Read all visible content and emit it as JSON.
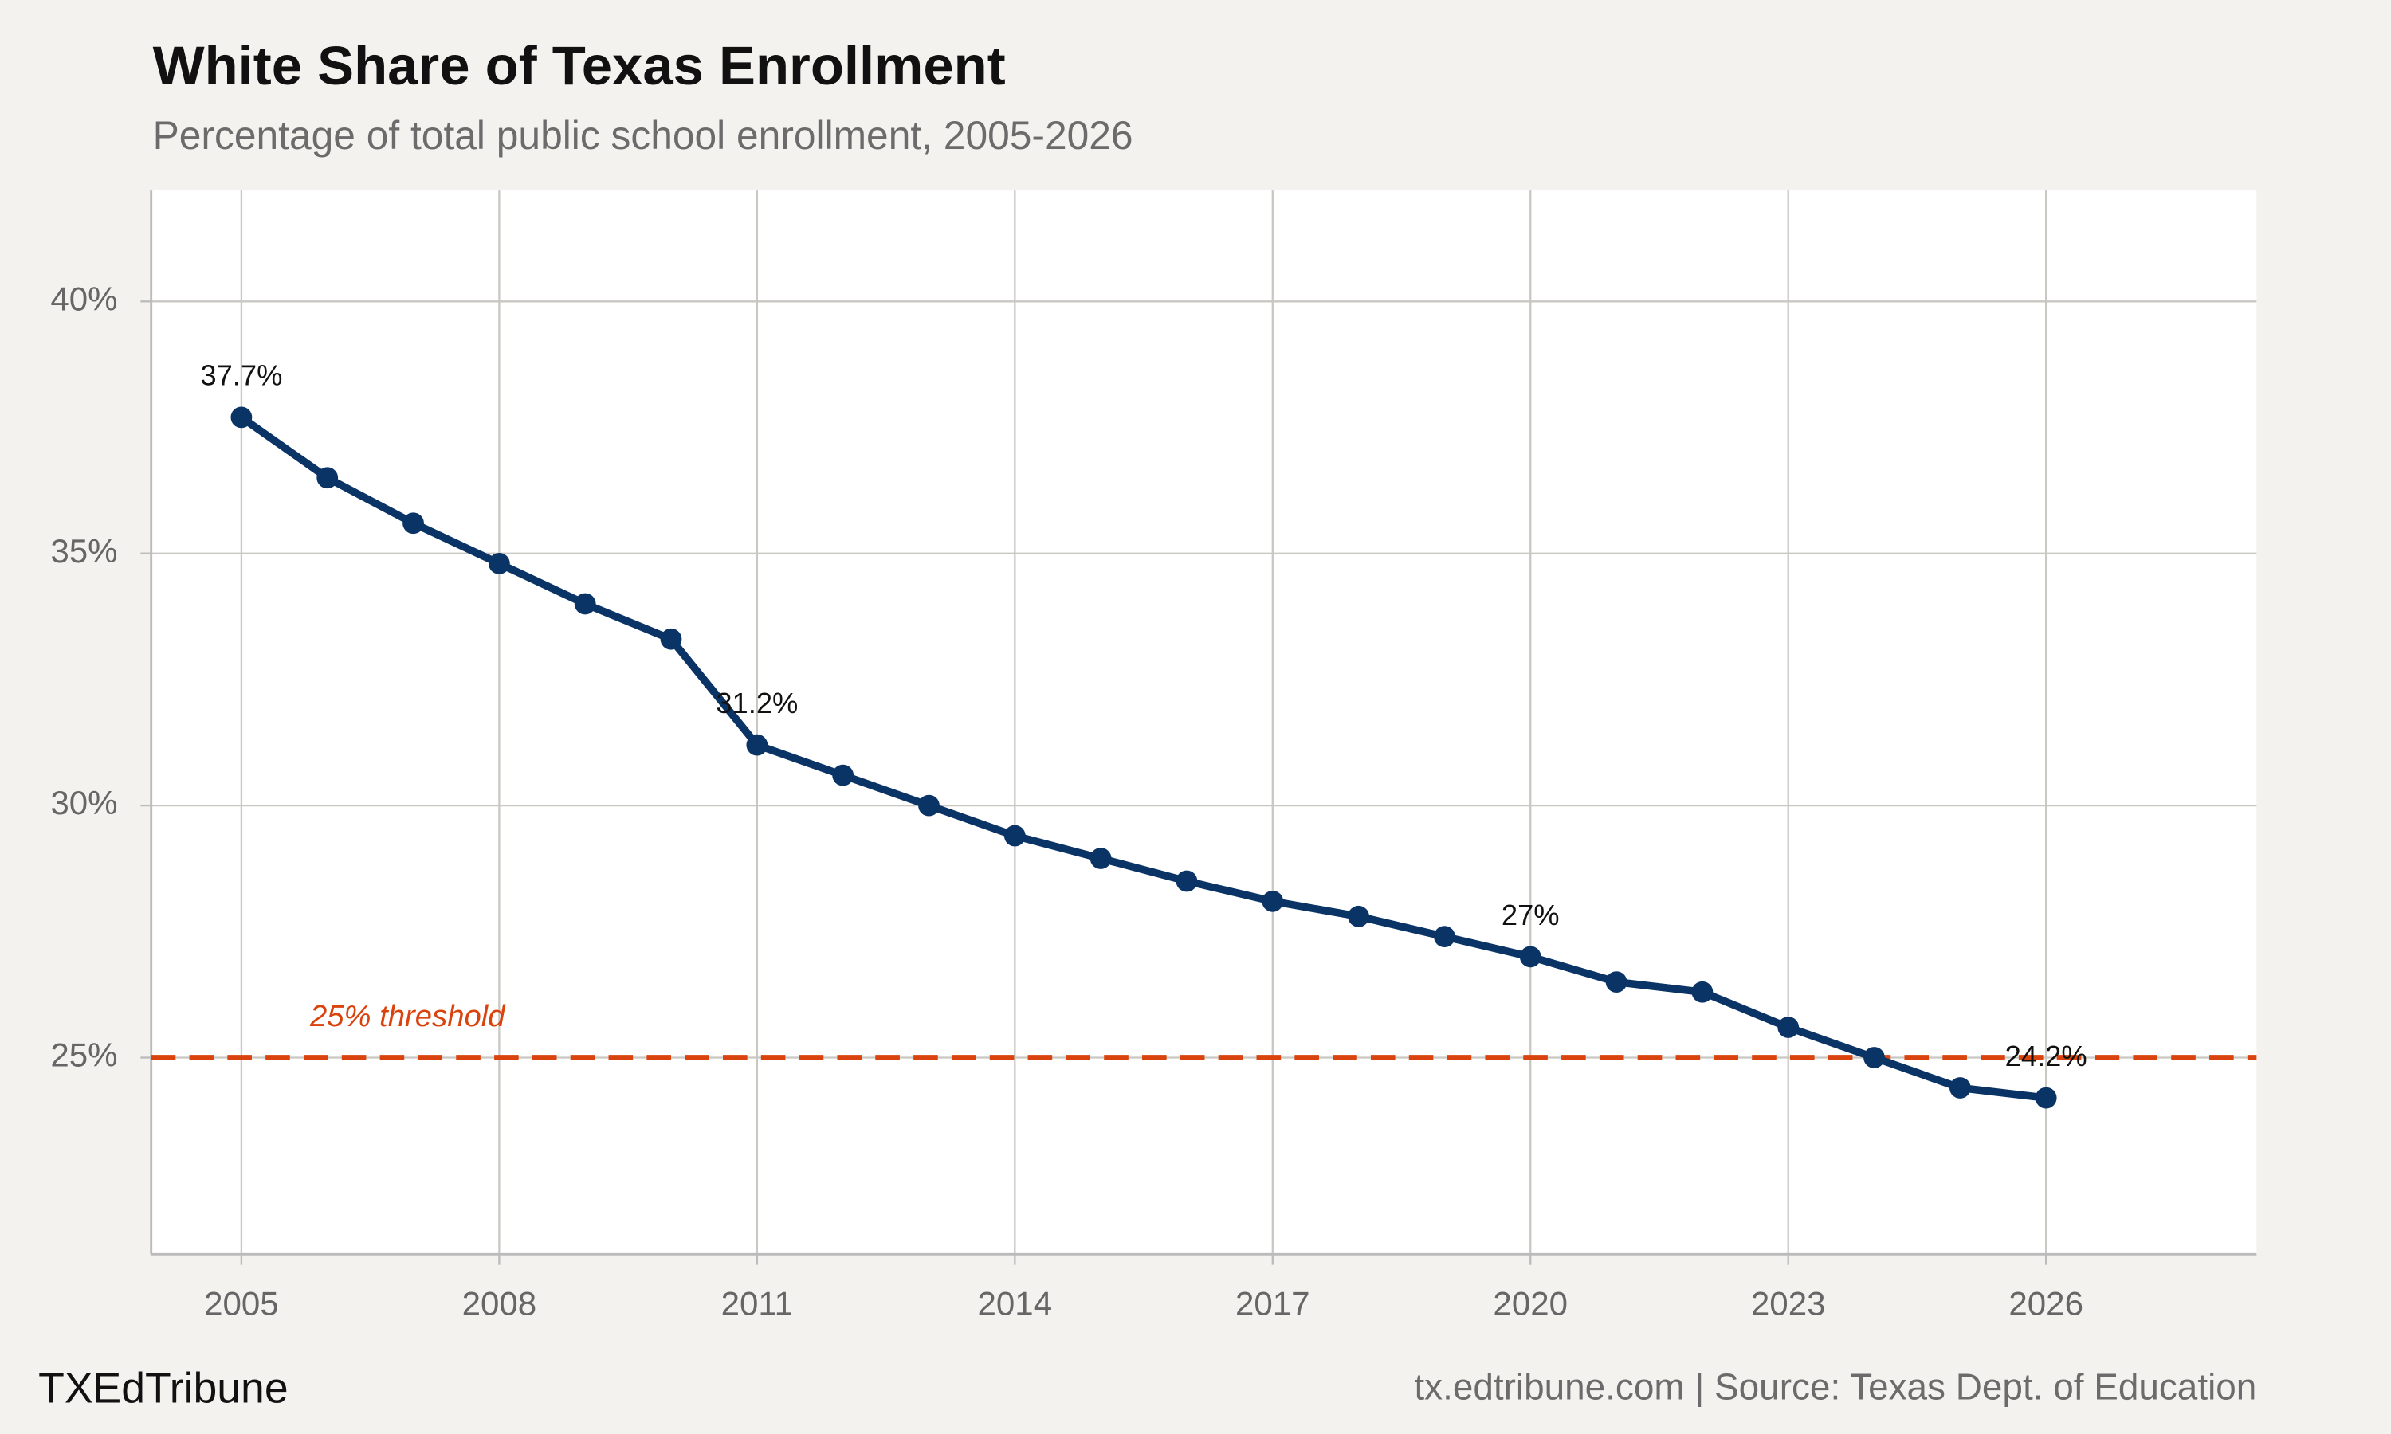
{
  "chart_data": {
    "type": "line",
    "title": "White Share of Texas Enrollment",
    "subtitle": "Percentage of total public school enrollment, 2005-2026",
    "x": [
      2005,
      2006,
      2007,
      2008,
      2009,
      2010,
      2011,
      2012,
      2013,
      2014,
      2015,
      2016,
      2017,
      2018,
      2019,
      2020,
      2021,
      2022,
      2023,
      2024,
      2025,
      2026
    ],
    "series": [
      {
        "color": "#0b3466",
        "values": [
          37.7,
          36.5,
          35.6,
          34.8,
          34.0,
          33.3,
          31.2,
          30.6,
          30.0,
          29.4,
          28.95,
          28.5,
          28.1,
          27.8,
          27.4,
          27.0,
          26.5,
          26.3,
          25.6,
          25.0,
          24.4,
          24.2
        ],
        "value_labels": [
          "37.7%",
          null,
          null,
          null,
          null,
          null,
          "31.2%",
          null,
          null,
          null,
          null,
          null,
          null,
          null,
          null,
          "27%",
          null,
          null,
          null,
          null,
          null,
          "24.2%"
        ]
      }
    ],
    "xlim": [
      2003.95,
      2028.45
    ],
    "ylim": [
      21.1,
      42.2
    ],
    "xticks": [
      2005,
      2008,
      2011,
      2014,
      2017,
      2020,
      2023,
      2026
    ],
    "yticks": [
      {
        "value": 25,
        "label": "25%"
      },
      {
        "value": 30,
        "label": "30%"
      },
      {
        "value": 35,
        "label": "35%"
      },
      {
        "value": 40,
        "label": "40%"
      }
    ],
    "grid": true,
    "reference_line": {
      "value": 25,
      "label": "25% threshold",
      "color": "#d9430d"
    },
    "brand": "TXEdTribune",
    "source": "tx.edtribune.com | Source: Texas Dept. of Education"
  }
}
